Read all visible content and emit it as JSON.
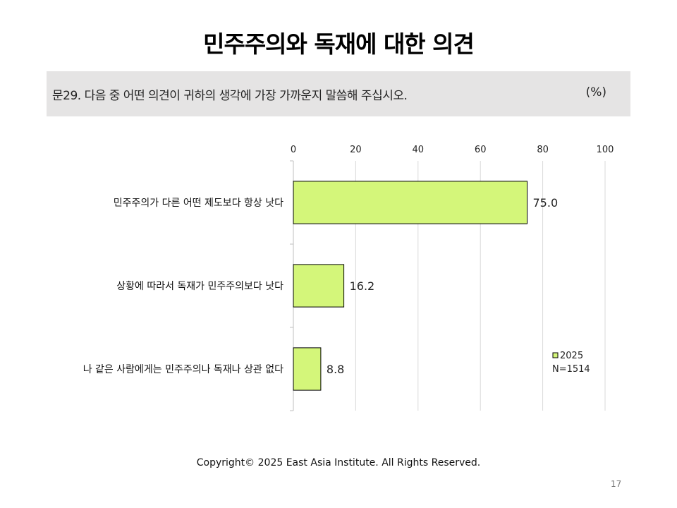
{
  "page": {
    "title": "민주주의와 독재에 대한 의견",
    "question": "문29. 다음 중 어떤 의견이 귀하의 생각에 가장 가까운지 말씀해 주십시오.",
    "unit": "(%)",
    "footer": "Copyright© 2025 East Asia Institute. All Rights Reserved.",
    "page_number": "17"
  },
  "chart_data": {
    "type": "bar",
    "orientation": "horizontal",
    "categories": [
      "민주주의가 다른 어떤 제도보다 항상 낫다",
      "상황에 따라서 독재가 민주주의보다 낫다",
      "나 같은 사람에게는 민주주의나 독재나 상관 없다"
    ],
    "series": [
      {
        "name": "2025",
        "values": [
          75.0,
          16.2,
          8.8
        ],
        "color": "#d4f67a"
      }
    ],
    "value_labels": [
      "75.0",
      "16.2",
      "8.8"
    ],
    "legend": {
      "entries": [
        "2025"
      ],
      "note": "N=1514",
      "position": "bottom-right"
    },
    "xlim": [
      0,
      100
    ],
    "x_ticks": [
      0,
      20,
      40,
      60,
      80,
      100
    ],
    "grid": true,
    "axis_position": "top"
  }
}
